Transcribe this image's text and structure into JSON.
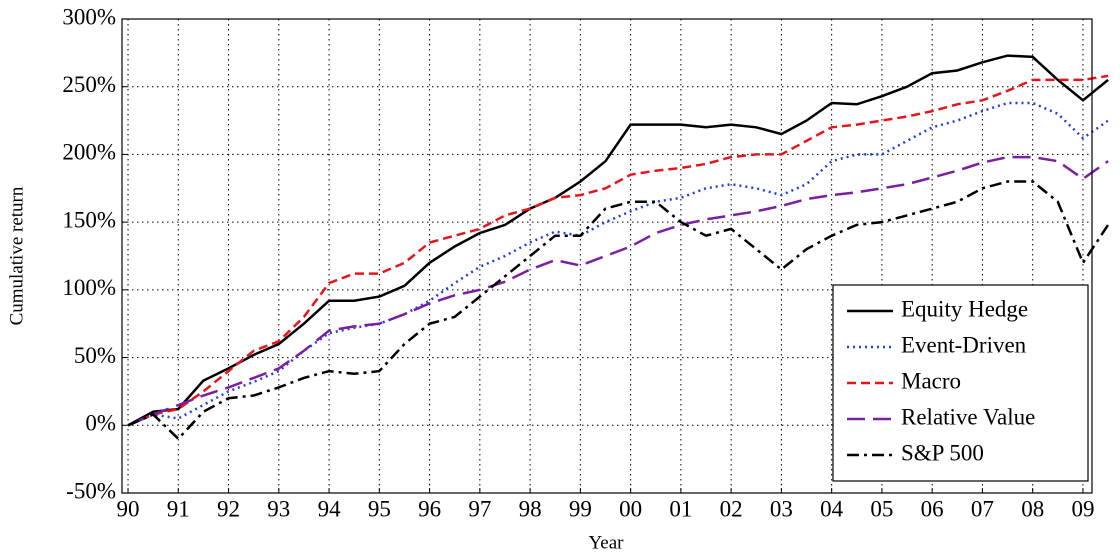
{
  "chart_data": {
    "type": "line",
    "xlabel": "Year",
    "ylabel": "Cumulative return",
    "x": [
      1990,
      1990.5,
      1991,
      1991.5,
      1992,
      1992.5,
      1993,
      1993.5,
      1994,
      1994.5,
      1995,
      1995.5,
      1996,
      1996.5,
      1997,
      1997.5,
      1998,
      1998.5,
      1999,
      1999.5,
      2000,
      2000.5,
      2001,
      2001.5,
      2002,
      2002.5,
      2003,
      2003.5,
      2004,
      2004.5,
      2005,
      2005.5,
      2006,
      2006.5,
      2007,
      2007.5,
      2008,
      2008.5,
      2009,
      2009.5
    ],
    "series": [
      {
        "name": "Equity Hedge",
        "color": "#000000",
        "style": "solid",
        "values": [
          0,
          10,
          12,
          33,
          42,
          52,
          60,
          75,
          92,
          92,
          95,
          103,
          120,
          132,
          142,
          148,
          160,
          168,
          180,
          195,
          222,
          222,
          222,
          220,
          222,
          220,
          215,
          225,
          238,
          237,
          243,
          250,
          260,
          262,
          268,
          273,
          272,
          255,
          240,
          255
        ]
      },
      {
        "name": "Event-Driven",
        "color": "#1f3fe0",
        "style": "dotted",
        "values": [
          0,
          8,
          5,
          15,
          25,
          32,
          40,
          55,
          68,
          72,
          75,
          82,
          92,
          105,
          117,
          125,
          135,
          143,
          140,
          150,
          158,
          165,
          168,
          175,
          178,
          175,
          170,
          178,
          195,
          200,
          200,
          210,
          220,
          225,
          232,
          238,
          238,
          230,
          212,
          225
        ]
      },
      {
        "name": "Macro",
        "color": "#e8141c",
        "style": "dashed",
        "values": [
          0,
          8,
          12,
          25,
          40,
          55,
          62,
          80,
          105,
          112,
          112,
          120,
          135,
          140,
          145,
          155,
          160,
          168,
          170,
          175,
          185,
          188,
          190,
          193,
          198,
          200,
          200,
          210,
          220,
          222,
          225,
          228,
          232,
          237,
          240,
          247,
          255,
          255,
          255,
          258
        ]
      },
      {
        "name": "Relative Value",
        "color": "#7b1fa2",
        "style": "longdash",
        "values": [
          0,
          8,
          15,
          22,
          28,
          35,
          42,
          55,
          70,
          73,
          75,
          82,
          90,
          96,
          100,
          106,
          115,
          122,
          118,
          125,
          132,
          142,
          148,
          152,
          155,
          158,
          162,
          167,
          170,
          172,
          175,
          178,
          183,
          188,
          194,
          198,
          198,
          195,
          182,
          195
        ]
      },
      {
        "name": "S&P 500",
        "color": "#000000",
        "style": "dashdot",
        "values": [
          0,
          8,
          -10,
          10,
          20,
          22,
          28,
          35,
          40,
          38,
          40,
          60,
          75,
          80,
          95,
          110,
          125,
          140,
          140,
          160,
          165,
          165,
          150,
          140,
          145,
          130,
          115,
          130,
          140,
          148,
          150,
          155,
          160,
          165,
          175,
          180,
          180,
          165,
          120,
          148
        ]
      }
    ],
    "xlim": [
      1989.88,
      2009.18
    ],
    "xticks": [
      {
        "value": 1990,
        "label": "90"
      },
      {
        "value": 1991,
        "label": "91"
      },
      {
        "value": 1992,
        "label": "92"
      },
      {
        "value": 1993,
        "label": "93"
      },
      {
        "value": 1994,
        "label": "94"
      },
      {
        "value": 1995,
        "label": "95"
      },
      {
        "value": 1996,
        "label": "96"
      },
      {
        "value": 1997,
        "label": "97"
      },
      {
        "value": 1998,
        "label": "98"
      },
      {
        "value": 1999,
        "label": "99"
      },
      {
        "value": 2000,
        "label": "00"
      },
      {
        "value": 2001,
        "label": "01"
      },
      {
        "value": 2002,
        "label": "02"
      },
      {
        "value": 2003,
        "label": "03"
      },
      {
        "value": 2004,
        "label": "04"
      },
      {
        "value": 2005,
        "label": "05"
      },
      {
        "value": 2006,
        "label": "06"
      },
      {
        "value": 2007,
        "label": "07"
      },
      {
        "value": 2008,
        "label": "08"
      },
      {
        "value": 2009,
        "label": "09"
      }
    ],
    "ylim": [
      -50,
      300
    ],
    "yticks": [
      {
        "value": -50,
        "label": "-50%"
      },
      {
        "value": 0,
        "label": "0%"
      },
      {
        "value": 50,
        "label": "50%"
      },
      {
        "value": 100,
        "label": "100%"
      },
      {
        "value": 150,
        "label": "150%"
      },
      {
        "value": 200,
        "label": "200%"
      },
      {
        "value": 250,
        "label": "250%"
      },
      {
        "value": 300,
        "label": "300%"
      }
    ],
    "grid": true,
    "legend": "lower right"
  }
}
